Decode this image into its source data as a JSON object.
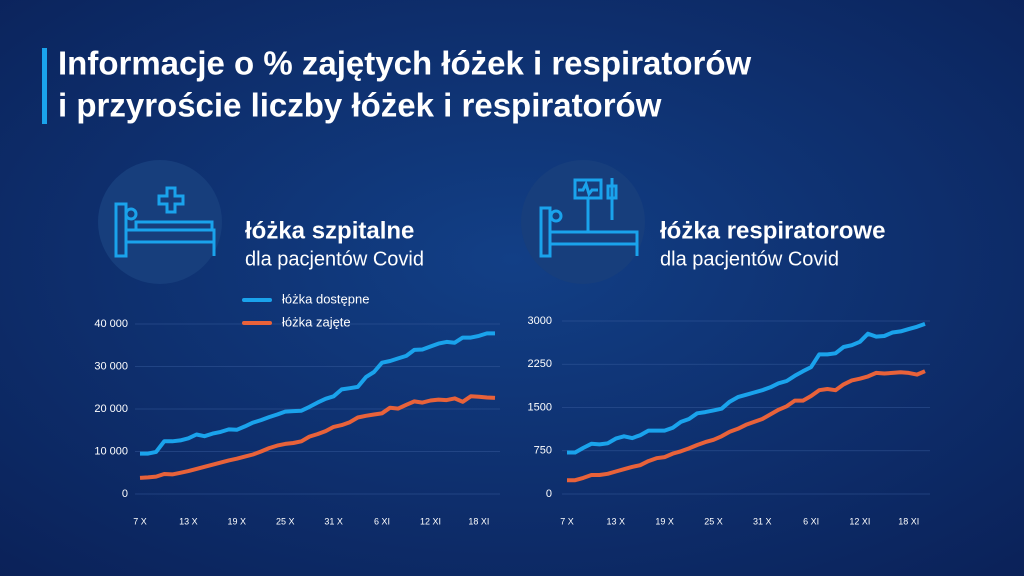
{
  "title": [
    "Informacje o % zajętych łóżek i respiratorów",
    "i przyroście liczby  łóżek i respiratorów"
  ],
  "chart_data": [
    {
      "type": "line",
      "title": "łóżka szpitalne",
      "subtitle": "dla pacjentów Covid",
      "legend": true,
      "categories": [
        "7 X",
        null,
        null,
        null,
        null,
        null,
        "13 X",
        null,
        null,
        null,
        null,
        null,
        "19 X",
        null,
        null,
        null,
        null,
        null,
        "25 X",
        null,
        null,
        null,
        null,
        null,
        "31 X",
        null,
        null,
        null,
        null,
        null,
        "6 XI",
        null,
        null,
        null,
        null,
        null,
        "12 XI",
        null,
        null,
        null,
        null,
        null,
        "18 XI",
        null,
        null
      ],
      "ylim": [
        0,
        40000
      ],
      "yticks": [
        0,
        {
          "value": 10000,
          "label": "10 000"
        },
        {
          "value": 20000,
          "label": "20 000"
        },
        {
          "value": 30000,
          "label": "30 000"
        },
        {
          "value": 40000,
          "label": "40 000"
        }
      ],
      "grid": true,
      "series": [
        {
          "name": "łóżka dostępne",
          "color": "#1aa3ec",
          "values": [
            9500,
            9500,
            9900,
            12400,
            12400,
            12600,
            13100,
            14000,
            13600,
            14200,
            14600,
            15200,
            15100,
            15900,
            16800,
            17400,
            18100,
            18700,
            19400,
            19500,
            19600,
            20500,
            21500,
            22400,
            23000,
            24600,
            24900,
            25200,
            27500,
            28700,
            30900,
            31300,
            31900,
            32500,
            33900,
            34000,
            34700,
            35400,
            35800,
            35600,
            36800,
            36800,
            37200,
            37800,
            37800
          ]
        },
        {
          "name": "łóżka zajęte",
          "color": "#e8623a",
          "values": [
            3800,
            3900,
            4100,
            4700,
            4600,
            5000,
            5400,
            5900,
            6400,
            6900,
            7400,
            7900,
            8300,
            8800,
            9300,
            10000,
            10800,
            11400,
            11800,
            12000,
            12400,
            13500,
            14100,
            14800,
            15800,
            16200,
            16900,
            18000,
            18400,
            18700,
            19000,
            20300,
            20100,
            21000,
            21800,
            21500,
            22000,
            22200,
            22100,
            22500,
            21700,
            23000,
            22900,
            22700,
            22600
          ]
        }
      ]
    },
    {
      "type": "line",
      "title": "łóżka respiratorowe",
      "subtitle": "dla pacjentów Covid",
      "categories": [
        "7 X",
        null,
        null,
        null,
        null,
        null,
        "13 X",
        null,
        null,
        null,
        null,
        null,
        "19 X",
        null,
        null,
        null,
        null,
        null,
        "25 X",
        null,
        null,
        null,
        null,
        null,
        "31 X",
        null,
        null,
        null,
        null,
        null,
        "6 XI",
        null,
        null,
        null,
        null,
        null,
        "12 XI",
        null,
        null,
        null,
        null,
        null,
        "18 XI",
        null,
        null
      ],
      "ylim": [
        0,
        3000
      ],
      "yticks": [
        0,
        750,
        1500,
        2250,
        3000
      ],
      "grid": true,
      "series": [
        {
          "color": "#1aa3ec",
          "values": [
            720,
            720,
            800,
            870,
            860,
            880,
            960,
            1000,
            970,
            1020,
            1100,
            1100,
            1100,
            1150,
            1250,
            1300,
            1400,
            1420,
            1450,
            1480,
            1600,
            1680,
            1720,
            1760,
            1800,
            1850,
            1920,
            1960,
            2050,
            2130,
            2200,
            2420,
            2420,
            2440,
            2550,
            2580,
            2640,
            2780,
            2730,
            2740,
            2800,
            2820,
            2860,
            2900,
            2950
          ]
        },
        {
          "color": "#e8623a",
          "values": [
            240,
            240,
            280,
            330,
            330,
            350,
            390,
            430,
            470,
            500,
            570,
            620,
            640,
            700,
            740,
            790,
            850,
            900,
            940,
            1000,
            1080,
            1130,
            1200,
            1250,
            1300,
            1380,
            1460,
            1520,
            1620,
            1620,
            1700,
            1800,
            1820,
            1800,
            1900,
            1970,
            2000,
            2040,
            2100,
            2090,
            2100,
            2110,
            2100,
            2070,
            2130
          ]
        }
      ]
    }
  ]
}
